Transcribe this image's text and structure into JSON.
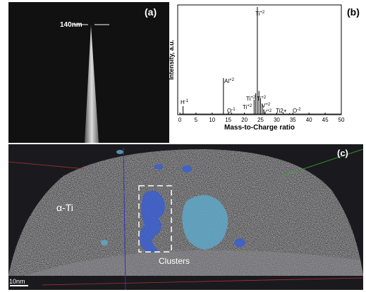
{
  "panel_a": {
    "label": "(a)",
    "width_label": "140nm"
  },
  "chart_data": {
    "type": "stem",
    "label": "(b)",
    "xlabel": "Mass-to-Charge ratio",
    "ylabel": "Intensity, a.u.",
    "xlim": [
      0,
      50
    ],
    "xticks": [
      0,
      5,
      10,
      15,
      20,
      25,
      30,
      35,
      40,
      45,
      50
    ],
    "ylim": [
      0,
      1
    ],
    "x": [
      1,
      13.5,
      16,
      23,
      23.5,
      24,
      24.5,
      25,
      25.5,
      26,
      32,
      34
    ],
    "series": [
      {
        "color": "#000000",
        "values": [
          0.08,
          0.34,
          0.02,
          0.14,
          0.2,
          1.0,
          0.22,
          0.15,
          0.1,
          0.05,
          0.02,
          0.015
        ]
      }
    ],
    "annotations": [
      {
        "text": "H",
        "sup": "-1"
      },
      {
        "text": "Al",
        "sup": "+2"
      },
      {
        "text": "O",
        "sup": "-1"
      },
      {
        "text": "Ti",
        "sup": "+2"
      },
      {
        "text": "Ti",
        "sup": "+2"
      },
      {
        "text": "Ti",
        "sup": "+2"
      },
      {
        "text": "Ti",
        "sup": "+2"
      },
      {
        "text": "V",
        "sup": "+2"
      },
      {
        "text": "V",
        "sup": "+2"
      },
      {
        "text": "Ti2+",
        "sup": ""
      },
      {
        "text": "O",
        "sup": "-2"
      }
    ]
  },
  "panel_c": {
    "label": "(c)",
    "phase": "α-Ti",
    "cluster_label": "Clusters",
    "scale_bar": "10nm"
  }
}
